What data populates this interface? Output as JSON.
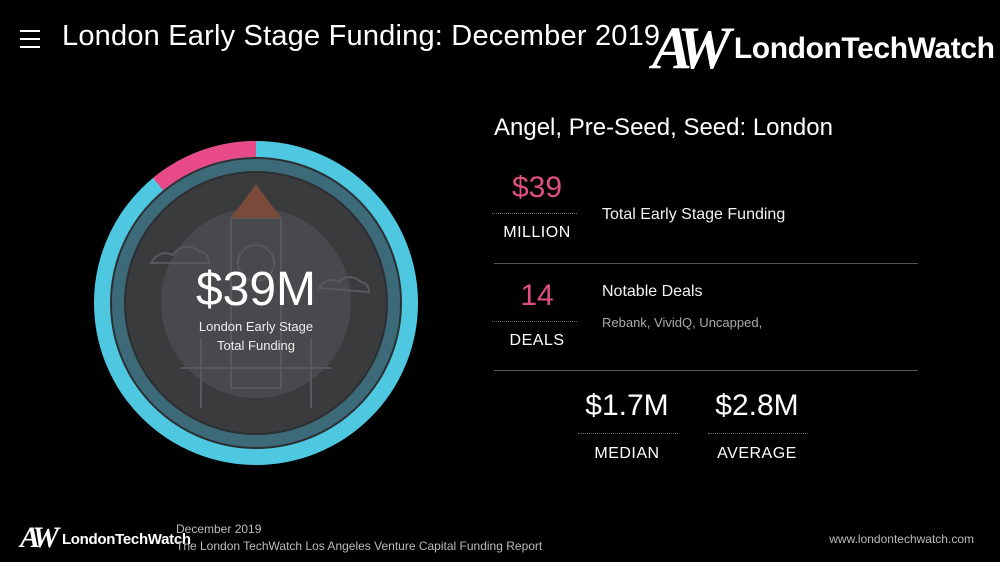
{
  "header": {
    "title": "London Early Stage Funding: December 2019",
    "brand_mark": "AW",
    "brand_name": "LondonTechWatch"
  },
  "donut": {
    "value": "$39M",
    "label_line1": "London Early Stage",
    "label_line2": "Total Funding",
    "highlight_fraction": 0.11,
    "ring_color": "#4ec7e0",
    "highlight_color": "#e84a88"
  },
  "stats": {
    "section_title": "Angel, Pre-Seed, Seed: London",
    "total": {
      "value": "$39",
      "unit": "MILLION",
      "description": "Total Early Stage Funding"
    },
    "deals": {
      "value": "14",
      "unit": "DEALS",
      "description": "Notable Deals",
      "companies": "Rebank, VividQ, Uncapped,"
    },
    "median": {
      "value": "$1.7M",
      "unit": "MEDIAN"
    },
    "average": {
      "value": "$2.8M",
      "unit": "AVERAGE"
    }
  },
  "footer": {
    "brand_mark": "AW",
    "brand_name": "LondonTechWatch",
    "date": "December 2019",
    "report": "The London TechWatch Los Angeles Venture Capital Funding Report",
    "url": "www.londontechwatch.com"
  },
  "colors": {
    "accent_pink": "#e0507f",
    "background": "#000000"
  }
}
